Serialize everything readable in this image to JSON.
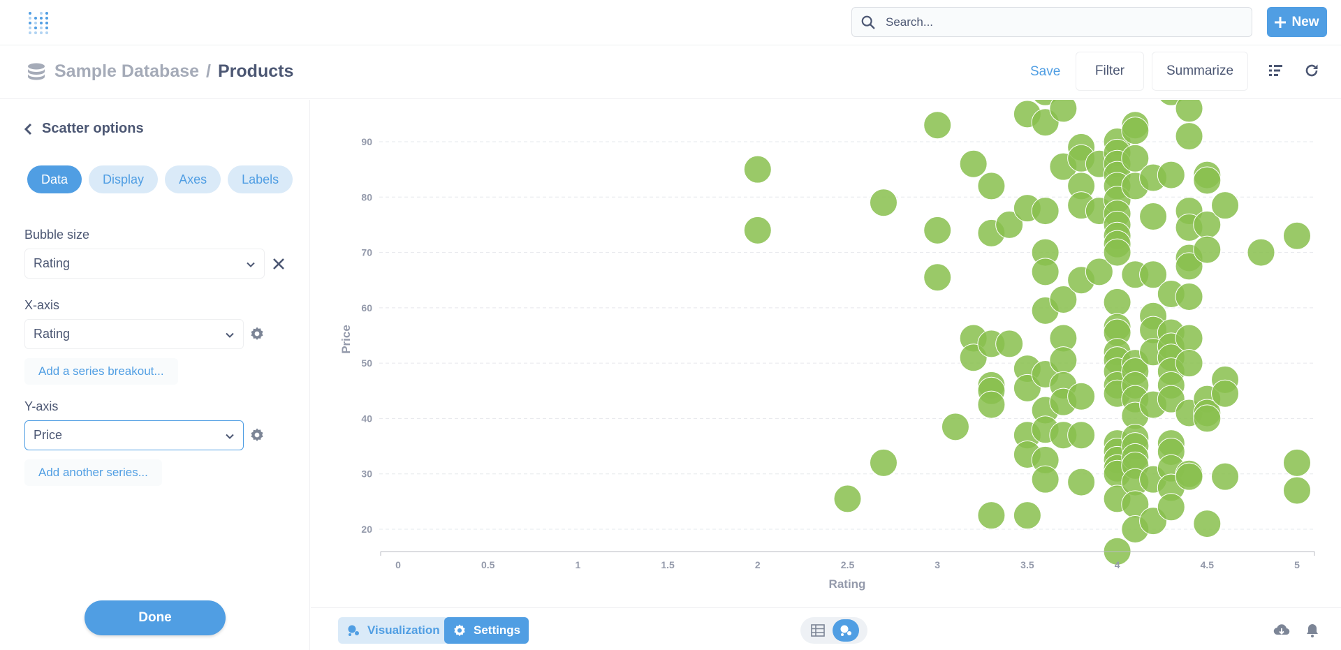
{
  "navbar": {
    "search_placeholder": "Search...",
    "new_label": "New"
  },
  "header": {
    "database": "Sample Database",
    "separator": "/",
    "table": "Products",
    "save_label": "Save",
    "filter_label": "Filter",
    "summarize_label": "Summarize"
  },
  "sidebar": {
    "title": "Scatter options",
    "tabs": [
      {
        "label": "Data",
        "active": true
      },
      {
        "label": "Display",
        "active": false
      },
      {
        "label": "Axes",
        "active": false
      },
      {
        "label": "Labels",
        "active": false
      }
    ],
    "bubble_size_label": "Bubble size",
    "bubble_size_value": "Rating",
    "x_axis_label": "X-axis",
    "x_axis_value": "Rating",
    "add_breakout_label": "Add a series breakout...",
    "y_axis_label": "Y-axis",
    "y_axis_value": "Price",
    "add_series_label": "Add another series...",
    "done_label": "Done"
  },
  "footer": {
    "visualization_label": "Visualization",
    "settings_label": "Settings"
  },
  "colors": {
    "brand": "#509ee3",
    "point": "#88bf4d",
    "text": "#4c5773",
    "muted": "#a5abb8"
  },
  "chart_data": {
    "type": "scatter",
    "title": "",
    "xlabel": "Rating",
    "ylabel": "Price",
    "xlim": [
      0,
      5
    ],
    "ylim": [
      15,
      100
    ],
    "x_ticks": [
      "0",
      "0.5",
      "1",
      "1.5",
      "2",
      "2.5",
      "3",
      "3.5",
      "4",
      "4.5",
      "5"
    ],
    "y_ticks": [
      "20",
      "30",
      "40",
      "50",
      "60",
      "70",
      "80",
      "90"
    ],
    "grid": true,
    "bubble_size_by": "Rating",
    "series": [
      {
        "points": [
          [
            2.0,
            85.0
          ],
          [
            2.0,
            74.0
          ],
          [
            2.5,
            25.5
          ],
          [
            2.7,
            79.0
          ],
          [
            2.7,
            32.0
          ],
          [
            3.0,
            93.0
          ],
          [
            3.0,
            74.0
          ],
          [
            3.0,
            65.5
          ],
          [
            3.1,
            38.5
          ],
          [
            3.2,
            86.0
          ],
          [
            3.2,
            54.5
          ],
          [
            3.2,
            51.0
          ],
          [
            3.3,
            82.0
          ],
          [
            3.3,
            73.5
          ],
          [
            3.3,
            53.5
          ],
          [
            3.3,
            46.0
          ],
          [
            3.3,
            45.0
          ],
          [
            3.3,
            42.5
          ],
          [
            3.3,
            22.5
          ],
          [
            3.4,
            75.0
          ],
          [
            3.4,
            53.5
          ],
          [
            3.5,
            95.0
          ],
          [
            3.5,
            78.0
          ],
          [
            3.5,
            49.0
          ],
          [
            3.5,
            45.5
          ],
          [
            3.5,
            37.0
          ],
          [
            3.5,
            33.5
          ],
          [
            3.5,
            22.5
          ],
          [
            3.6,
            99.0
          ],
          [
            3.6,
            93.5
          ],
          [
            3.6,
            77.5
          ],
          [
            3.6,
            70.0
          ],
          [
            3.6,
            66.5
          ],
          [
            3.6,
            59.5
          ],
          [
            3.6,
            48.0
          ],
          [
            3.6,
            41.5
          ],
          [
            3.6,
            38.0
          ],
          [
            3.6,
            32.5
          ],
          [
            3.6,
            29.0
          ],
          [
            3.7,
            96.0
          ],
          [
            3.7,
            85.5
          ],
          [
            3.7,
            61.5
          ],
          [
            3.7,
            54.5
          ],
          [
            3.7,
            50.5
          ],
          [
            3.7,
            46.0
          ],
          [
            3.7,
            43.0
          ],
          [
            3.7,
            37.0
          ],
          [
            3.8,
            89.0
          ],
          [
            3.8,
            87.0
          ],
          [
            3.8,
            82.0
          ],
          [
            3.8,
            78.5
          ],
          [
            3.8,
            65.0
          ],
          [
            3.8,
            44.0
          ],
          [
            3.8,
            37.0
          ],
          [
            3.8,
            28.5
          ],
          [
            3.9,
            86.0
          ],
          [
            3.9,
            77.5
          ],
          [
            3.9,
            66.5
          ],
          [
            4.0,
            90.0
          ],
          [
            4.0,
            88.0
          ],
          [
            4.0,
            86.0
          ],
          [
            4.0,
            84.0
          ],
          [
            4.0,
            82.0
          ],
          [
            4.0,
            79.5
          ],
          [
            4.0,
            77.0
          ],
          [
            4.0,
            75.0
          ],
          [
            4.0,
            73.0
          ],
          [
            4.0,
            71.5
          ],
          [
            4.0,
            70.0
          ],
          [
            4.0,
            61.0
          ],
          [
            4.0,
            56.5
          ],
          [
            4.0,
            55.5
          ],
          [
            4.0,
            52.0
          ],
          [
            4.0,
            50.5
          ],
          [
            4.0,
            48.5
          ],
          [
            4.0,
            46.0
          ],
          [
            4.0,
            44.5
          ],
          [
            4.0,
            35.5
          ],
          [
            4.0,
            34.0
          ],
          [
            4.0,
            32.5
          ],
          [
            4.0,
            31.0
          ],
          [
            4.0,
            30.0
          ],
          [
            4.0,
            25.5
          ],
          [
            4.0,
            16.0
          ],
          [
            4.1,
            93.0
          ],
          [
            4.1,
            92.0
          ],
          [
            4.1,
            87.0
          ],
          [
            4.1,
            82.0
          ],
          [
            4.1,
            66.0
          ],
          [
            4.1,
            50.0
          ],
          [
            4.1,
            48.5
          ],
          [
            4.1,
            46.0
          ],
          [
            4.1,
            43.5
          ],
          [
            4.1,
            40.5
          ],
          [
            4.1,
            36.5
          ],
          [
            4.1,
            35.0
          ],
          [
            4.1,
            33.0
          ],
          [
            4.1,
            31.5
          ],
          [
            4.1,
            28.5
          ],
          [
            4.1,
            24.5
          ],
          [
            4.1,
            20.0
          ],
          [
            4.2,
            83.5
          ],
          [
            4.2,
            76.5
          ],
          [
            4.2,
            66.0
          ],
          [
            4.2,
            58.5
          ],
          [
            4.2,
            56.0
          ],
          [
            4.2,
            52.0
          ],
          [
            4.2,
            42.5
          ],
          [
            4.2,
            29.0
          ],
          [
            4.2,
            21.5
          ],
          [
            4.3,
            99.0
          ],
          [
            4.3,
            84.0
          ],
          [
            4.3,
            62.5
          ],
          [
            4.3,
            55.5
          ],
          [
            4.3,
            53.0
          ],
          [
            4.3,
            51.0
          ],
          [
            4.3,
            48.5
          ],
          [
            4.3,
            46.0
          ],
          [
            4.3,
            43.5
          ],
          [
            4.3,
            35.5
          ],
          [
            4.3,
            34.0
          ],
          [
            4.3,
            31.0
          ],
          [
            4.3,
            27.5
          ],
          [
            4.3,
            24.0
          ],
          [
            4.4,
            96.0
          ],
          [
            4.4,
            91.0
          ],
          [
            4.4,
            77.5
          ],
          [
            4.4,
            74.5
          ],
          [
            4.4,
            69.0
          ],
          [
            4.4,
            67.5
          ],
          [
            4.4,
            62.0
          ],
          [
            4.4,
            54.5
          ],
          [
            4.4,
            50.0
          ],
          [
            4.4,
            41.0
          ],
          [
            4.4,
            30.0
          ],
          [
            4.4,
            29.5
          ],
          [
            4.5,
            84.0
          ],
          [
            4.5,
            83.0
          ],
          [
            4.5,
            75.0
          ],
          [
            4.5,
            70.5
          ],
          [
            4.5,
            43.5
          ],
          [
            4.5,
            41.0
          ],
          [
            4.5,
            40.0
          ],
          [
            4.5,
            21.0
          ],
          [
            4.6,
            78.5
          ],
          [
            4.6,
            47.0
          ],
          [
            4.6,
            44.5
          ],
          [
            4.6,
            29.5
          ],
          [
            4.8,
            70.0
          ],
          [
            5.0,
            73.0
          ],
          [
            5.0,
            32.0
          ],
          [
            5.0,
            27.0
          ]
        ]
      }
    ]
  }
}
